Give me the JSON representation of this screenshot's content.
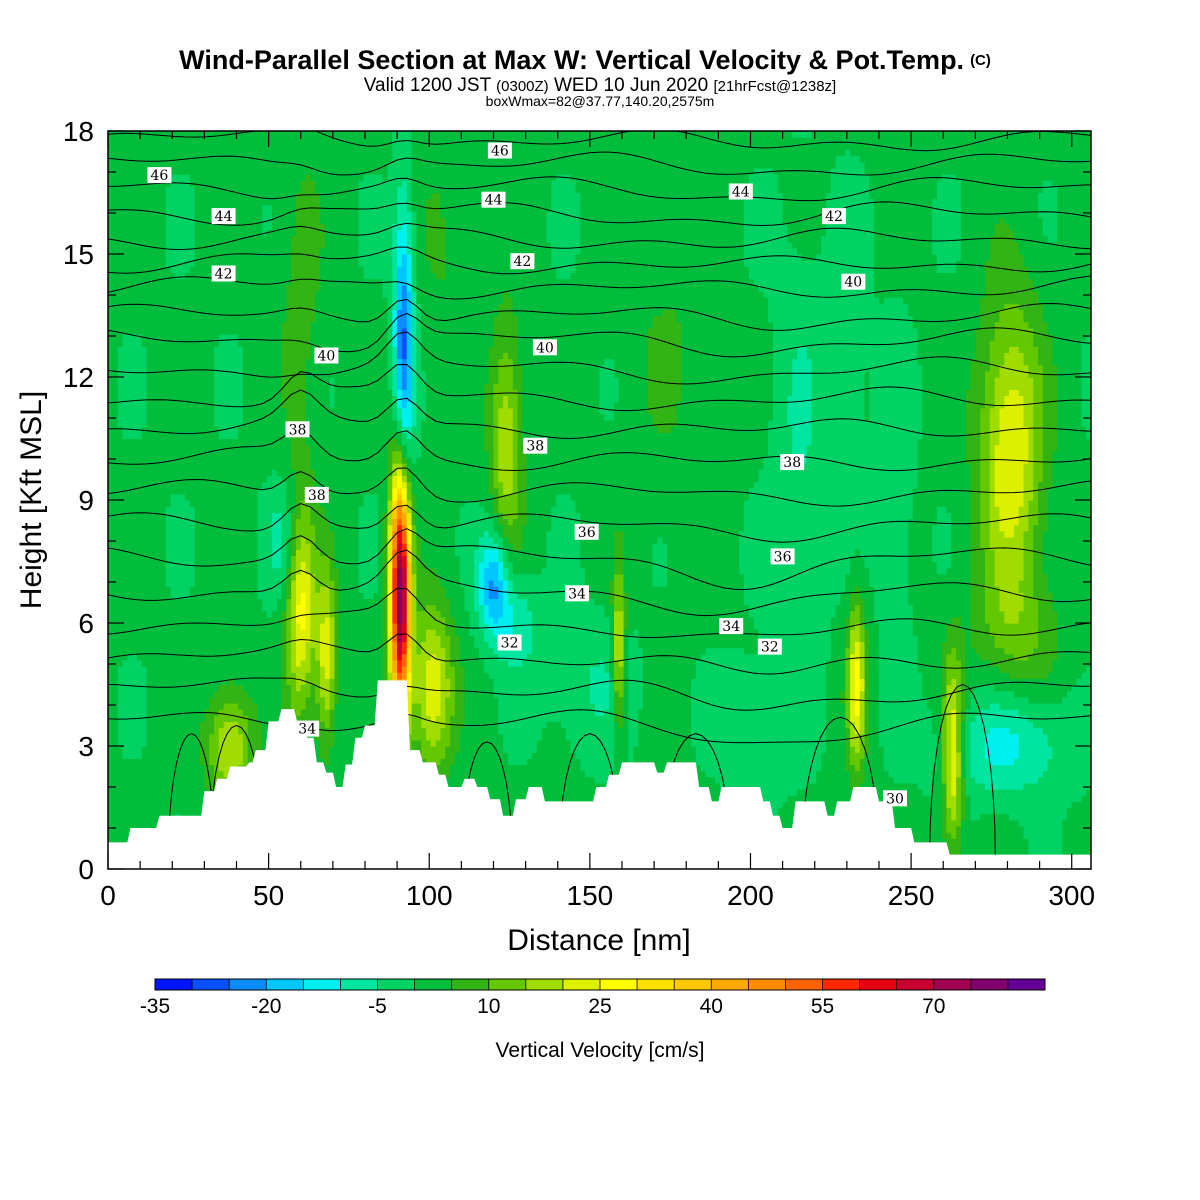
{
  "chart_data": {
    "type": "heatmap",
    "title": "Wind-Parallel Section at Max W: Vertical Velocity & Pot.Temp.",
    "title_mark": "(C)",
    "subtitle_parts": [
      "Valid 1200 JST",
      "(0300Z)",
      "WED 10 Jun 2020",
      "[21hrFcst@1238z]"
    ],
    "subtitle2": "boxWmax=82@37.77,140.20,2575m",
    "xlabel": "Distance [nm]",
    "ylabel": "Height [Kft MSL]",
    "xlim": [
      0,
      306
    ],
    "ylim": [
      0,
      18
    ],
    "x_ticks": [
      0,
      50,
      100,
      150,
      200,
      250,
      300
    ],
    "x_tick_labels": [
      "0",
      "50",
      "100",
      "150",
      "200",
      "250",
      "300"
    ],
    "y_ticks": [
      0,
      3,
      6,
      9,
      12,
      15,
      18
    ],
    "y_tick_labels": [
      "0",
      "3",
      "6",
      "9",
      "12",
      "15",
      "18"
    ],
    "colorbar": {
      "label": "Vertical Velocity [cm/s]",
      "levels": [
        -35,
        -30,
        -25,
        -20,
        -15,
        -10,
        -5,
        0,
        5,
        10,
        15,
        20,
        25,
        30,
        35,
        40,
        45,
        50,
        55,
        60,
        65,
        70,
        75,
        80
      ],
      "tick_values": [
        -35,
        -20,
        -5,
        10,
        25,
        40,
        55,
        70
      ],
      "tick_labels": [
        "-35",
        "-20",
        "-5",
        "10",
        "25",
        "40",
        "55",
        "70"
      ],
      "colors": [
        "#0014ff",
        "#0a50ff",
        "#0a8cff",
        "#00c8ff",
        "#00f0f0",
        "#00e6a0",
        "#00d264",
        "#00be3c",
        "#32b414",
        "#64c800",
        "#a0dc00",
        "#dcf000",
        "#ffff00",
        "#ffe100",
        "#ffc800",
        "#ffaa00",
        "#ff8c00",
        "#ff6400",
        "#ff2800",
        "#e60014",
        "#c80032",
        "#a00050",
        "#80006e",
        "#640096"
      ]
    },
    "theta_labels": [
      {
        "text": "46",
        "x": 16,
        "y": 16.9
      },
      {
        "text": "44",
        "x": 36,
        "y": 15.9
      },
      {
        "text": "42",
        "x": 36,
        "y": 14.5
      },
      {
        "text": "40",
        "x": 68,
        "y": 12.5
      },
      {
        "text": "38",
        "x": 59,
        "y": 10.7
      },
      {
        "text": "38",
        "x": 65,
        "y": 9.1
      },
      {
        "text": "34",
        "x": 62,
        "y": 3.4
      },
      {
        "text": "46",
        "x": 122,
        "y": 17.5
      },
      {
        "text": "44",
        "x": 120,
        "y": 16.3
      },
      {
        "text": "42",
        "x": 129,
        "y": 14.8
      },
      {
        "text": "40",
        "x": 136,
        "y": 12.7
      },
      {
        "text": "38",
        "x": 133,
        "y": 10.3
      },
      {
        "text": "36",
        "x": 149,
        "y": 8.2
      },
      {
        "text": "34",
        "x": 146,
        "y": 6.7
      },
      {
        "text": "32",
        "x": 125,
        "y": 5.5
      },
      {
        "text": "44",
        "x": 197,
        "y": 16.5
      },
      {
        "text": "42",
        "x": 226,
        "y": 15.9
      },
      {
        "text": "40",
        "x": 232,
        "y": 14.3
      },
      {
        "text": "38",
        "x": 213,
        "y": 9.9
      },
      {
        "text": "36",
        "x": 210,
        "y": 7.6
      },
      {
        "text": "34",
        "x": 194,
        "y": 5.9
      },
      {
        "text": "32",
        "x": 206,
        "y": 5.4
      },
      {
        "text": "30",
        "x": 245,
        "y": 1.7
      }
    ]
  }
}
